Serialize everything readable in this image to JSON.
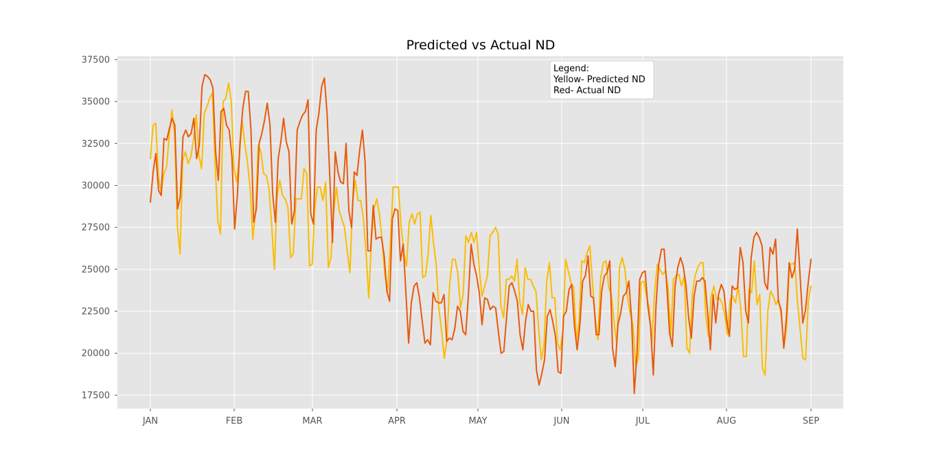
{
  "chart_data": {
    "type": "line",
    "title": "Predicted vs Actual ND",
    "xlabel": "",
    "ylabel": "",
    "x_tick_labels": [
      "JAN",
      "FEB",
      "MAR",
      "APR",
      "MAY",
      "JUN",
      "JUL",
      "AUG",
      "SEP"
    ],
    "y_ticks": [
      17500,
      20000,
      22500,
      25000,
      27500,
      30000,
      32500,
      35000,
      37500
    ],
    "ylim": [
      16700,
      37700
    ],
    "x_range": [
      "JAN",
      "SEP"
    ],
    "grid": true,
    "legend_placement": "top-center",
    "legend_text": [
      "Legend:",
      "Yellow- Predicted ND",
      "Red- Actual ND"
    ],
    "colors": {
      "predicted": "#FBBC04",
      "actual": "#E8590C",
      "background": "#E5E5E5",
      "grid": "#FFFFFF"
    },
    "series": [
      {
        "key": "predicted",
        "color": "#FBBC04",
        "values": [
          31600,
          33600,
          33700,
          30500,
          29600,
          30700,
          31100,
          33000,
          34500,
          33000,
          27600,
          25900,
          31500,
          32000,
          31300,
          31700,
          32700,
          34200,
          31800,
          31000,
          34300,
          34700,
          35200,
          35500,
          31400,
          27900,
          27100,
          35000,
          35200,
          36100,
          35000,
          31000,
          30200,
          31700,
          33900,
          32500,
          31400,
          29800,
          26800,
          28400,
          32400,
          32000,
          30700,
          30600,
          29800,
          27600,
          25000,
          29300,
          30300,
          29400,
          29200,
          28700,
          25700,
          25900,
          29200,
          29200,
          29200,
          31000,
          30700,
          25200,
          25300,
          28700,
          29900,
          29900,
          29100,
          30200,
          25100,
          25700,
          28400,
          29900,
          28500,
          28000,
          27500,
          26100,
          24800,
          29000,
          30300,
          29100,
          29100,
          28000,
          26000,
          23300,
          26800,
          28700,
          29200,
          28200,
          26600,
          24600,
          23700,
          26600,
          29900,
          29900,
          29900,
          27500,
          26000,
          25200,
          27800,
          28300,
          27700,
          28300,
          28400,
          24500,
          24600,
          25900,
          28200,
          26600,
          25300,
          22700,
          21300,
          19700,
          20800,
          24100,
          25600,
          25600,
          24800,
          22700,
          23500,
          27000,
          26600,
          27200,
          26600,
          27200,
          25000,
          23400,
          24000,
          24600,
          27000,
          27200,
          27500,
          27100,
          22800,
          22100,
          24400,
          24400,
          24600,
          24300,
          25600,
          23100,
          22300,
          25100,
          24400,
          24400,
          24000,
          23700,
          21500,
          19600,
          20500,
          24300,
          25400,
          23300,
          23300,
          20600,
          20200,
          21300,
          25600,
          24900,
          24200,
          23900,
          20800,
          21900,
          25500,
          25400,
          26000,
          26400,
          24100,
          22100,
          20800,
          24500,
          25400,
          25500,
          23900,
          23500,
          21800,
          20500,
          25100,
          25700,
          25000,
          23300,
          22300,
          21700,
          19200,
          19700,
          24200,
          24300,
          23400,
          22700,
          20600,
          23600,
          25300,
          25000,
          24700,
          24900,
          23900,
          21100,
          24400,
          24600,
          24700,
          24000,
          24600,
          20300,
          20000,
          23500,
          24600,
          25100,
          25400,
          25400,
          22200,
          21000,
          23400,
          24000,
          23200,
          23300,
          23000,
          22300,
          21100,
          23200,
          23400,
          23000,
          24000,
          22600,
          19800,
          19800,
          23800,
          23600,
          25500,
          22900,
          23500,
          19100,
          18700,
          22500,
          23700,
          23400,
          22900,
          23200,
          22200,
          20400,
          21600,
          25300,
          25300,
          25400,
          23100,
          21400,
          19700,
          19600,
          23100,
          24000
        ]
      },
      {
        "key": "actual",
        "color": "#E8590C",
        "values": [
          29000,
          30800,
          31900,
          29700,
          29400,
          32800,
          32700,
          33400,
          34000,
          33600,
          28600,
          29300,
          32900,
          33300,
          32900,
          33100,
          34000,
          31600,
          32400,
          35900,
          36600,
          36500,
          36300,
          35800,
          32000,
          30300,
          34400,
          34600,
          33600,
          33300,
          31700,
          27400,
          29400,
          32600,
          34600,
          35600,
          35600,
          33300,
          27800,
          28600,
          32500,
          33100,
          33900,
          34900,
          33600,
          29500,
          27800,
          31600,
          32600,
          34000,
          32600,
          32000,
          27700,
          28500,
          33300,
          33800,
          34200,
          34400,
          35100,
          28300,
          27700,
          33300,
          34300,
          35900,
          36400,
          34300,
          30500,
          26600,
          32000,
          30800,
          30200,
          30100,
          32500,
          28500,
          27500,
          30800,
          30600,
          32100,
          33300,
          31400,
          26100,
          26100,
          28800,
          26800,
          26900,
          26900,
          25800,
          23700,
          23100,
          28000,
          28600,
          28500,
          25500,
          26500,
          23600,
          20600,
          23000,
          24000,
          24200,
          23300,
          21900,
          20600,
          20800,
          20500,
          23600,
          23100,
          23000,
          23000,
          23500,
          20700,
          20900,
          20800,
          21500,
          22800,
          22500,
          21300,
          21100,
          23500,
          26500,
          25300,
          24600,
          23600,
          21700,
          23300,
          23200,
          22600,
          22800,
          22700,
          21300,
          20000,
          20100,
          22100,
          24000,
          24200,
          23700,
          23100,
          21100,
          20200,
          21900,
          22900,
          22500,
          22500,
          19000,
          18100,
          18800,
          19600,
          22200,
          22600,
          21900,
          21000,
          18900,
          18800,
          22200,
          22500,
          23800,
          24100,
          21600,
          20200,
          21700,
          24300,
          24600,
          25800,
          23400,
          23300,
          21100,
          21100,
          23700,
          24600,
          24800,
          25500,
          20300,
          19200,
          21700,
          22400,
          23400,
          23600,
          24300,
          22100,
          17600,
          20000,
          24400,
          24800,
          24900,
          22800,
          21600,
          18700,
          22800,
          25300,
          26200,
          26200,
          23900,
          21200,
          20400,
          24000,
          25100,
          25700,
          25200,
          24100,
          22100,
          20900,
          23400,
          24300,
          24300,
          24500,
          24300,
          22400,
          20200,
          23500,
          21800,
          23500,
          24100,
          23700,
          22000,
          21000,
          24000,
          23800,
          23900,
          26300,
          25400,
          22500,
          21800,
          25700,
          26900,
          27200,
          26900,
          26400,
          24200,
          23800,
          26300,
          25900,
          26800,
          23100,
          22600,
          20300,
          22200,
          25400,
          24500,
          25000,
          27400,
          24600,
          21800,
          22600,
          24200,
          25600
        ]
      }
    ]
  }
}
